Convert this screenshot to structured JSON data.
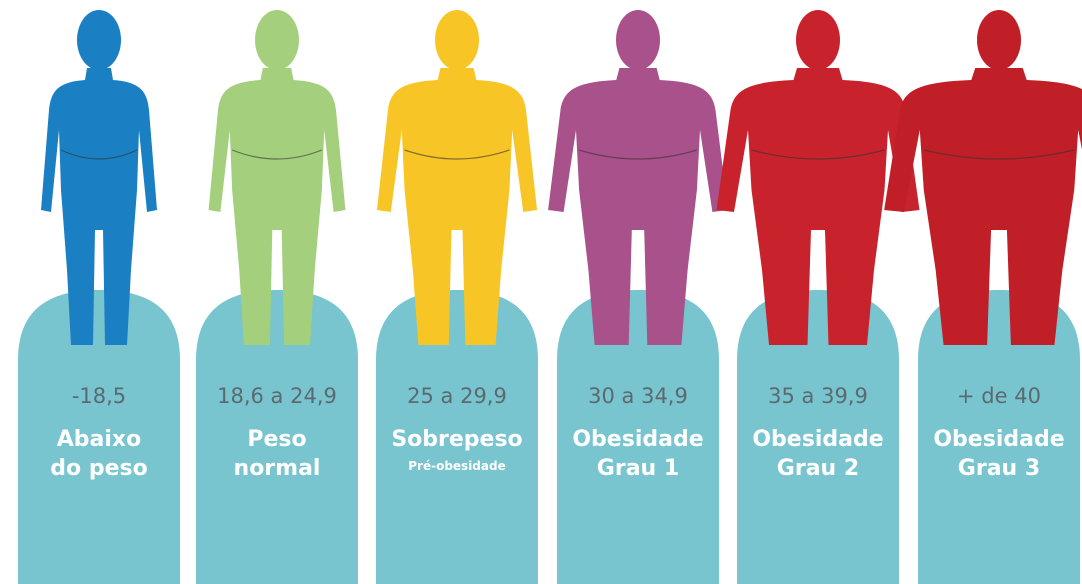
{
  "items": [
    {
      "range": "-18,5",
      "label": [
        "Abaixo",
        "do peso"
      ],
      "color": "#1a7fc3"
    },
    {
      "range": "18,6 a 24,9",
      "label": [
        "Peso",
        "normal"
      ],
      "color": "#a4cf7c"
    },
    {
      "range": "25 a 29,9",
      "label": [
        "Sobrepeso"
      ],
      "sublabel": "Pré-obesidade",
      "color": "#f7c525"
    },
    {
      "range": "30 a 34,9",
      "label": [
        "Obesidade",
        "Grau 1"
      ],
      "color": "#a9518a"
    },
    {
      "range": "35 a 39,9",
      "label": [
        "Obesidade",
        "Grau 2"
      ],
      "color": "#c8232c"
    },
    {
      "range": "+ de 40",
      "label": [
        "Obesidade",
        "Grau 3"
      ],
      "color": "#c11f27"
    }
  ]
}
